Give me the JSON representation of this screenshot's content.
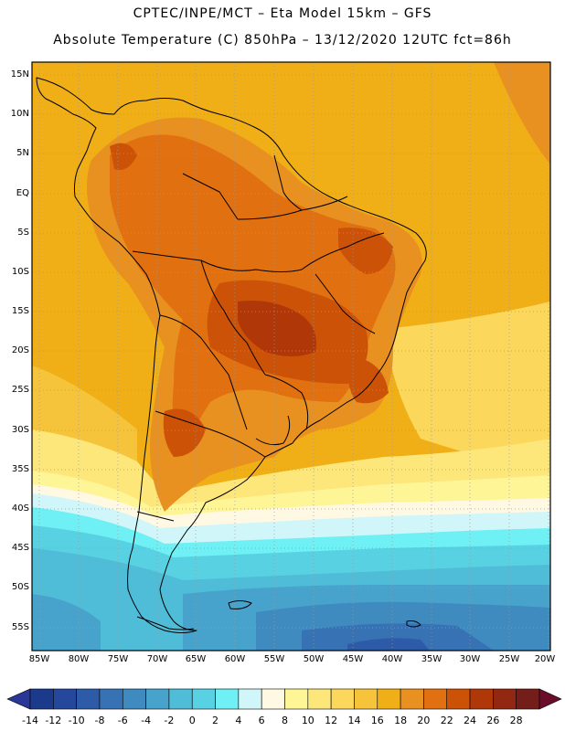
{
  "title_line1": "CPTEC/INPE/MCT –  Eta Model 15km – GFS",
  "title_line2": "Absolute Temperature (C) 850hPa – 13/12/2020 12UTC fct=86h",
  "lat_labels": [
    "15N",
    "10N",
    "5N",
    "EQ",
    "5S",
    "10S",
    "15S",
    "20S",
    "25S",
    "30S",
    "35S",
    "40S",
    "45S",
    "50S",
    "55S"
  ],
  "lon_labels": [
    "85W",
    "80W",
    "75W",
    "70W",
    "65W",
    "60W",
    "55W",
    "50W",
    "45W",
    "40W",
    "35W",
    "30W",
    "25W",
    "20W"
  ],
  "colorbar": {
    "values": [
      "-14",
      "-12",
      "-10",
      "-8",
      "-6",
      "-4",
      "-2",
      "0",
      "2",
      "4",
      "6",
      "8",
      "10",
      "12",
      "14",
      "16",
      "18",
      "20",
      "22",
      "24",
      "26",
      "28"
    ],
    "colors": [
      "#1b3a8c",
      "#25489c",
      "#2e5ba8",
      "#3672b4",
      "#3f8bc0",
      "#47a3cc",
      "#4fbcd8",
      "#58d2e2",
      "#6ff0f4",
      "#d0f6fa",
      "#fff8e2",
      "#fef596",
      "#fde67a",
      "#fbd85b",
      "#f6c43a",
      "#f0ae17",
      "#e89020",
      "#e07010",
      "#cc5208",
      "#b03808",
      "#932812",
      "#741e1a"
    ],
    "low_color": "#2a3796",
    "high_color": "#6a0d2a"
  }
}
